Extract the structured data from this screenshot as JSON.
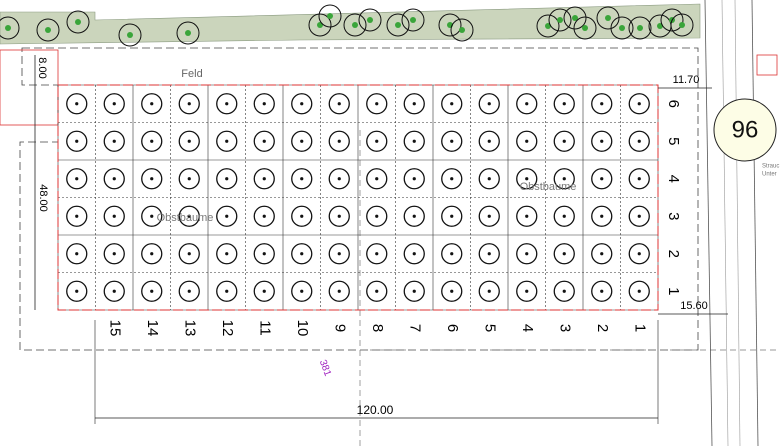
{
  "labels": {
    "field": "Feld",
    "orchard_left": "Obstbaume",
    "orchard_right": "Obstbaume",
    "plot_number": "381",
    "road_number": "96",
    "legend_1": "Strauc",
    "legend_2": "Unter"
  },
  "dimensions": {
    "top_left": "8.00",
    "top_right": "11.70",
    "left": "48.00",
    "bottom_right": "15.60",
    "bottom": "120.00"
  },
  "columns": [
    "15",
    "14",
    "13",
    "12",
    "11",
    "10",
    "9",
    "8",
    "7",
    "6",
    "5",
    "4",
    "3",
    "2",
    "1"
  ],
  "rows": [
    "6",
    "5",
    "4",
    "3",
    "2",
    "1"
  ]
}
